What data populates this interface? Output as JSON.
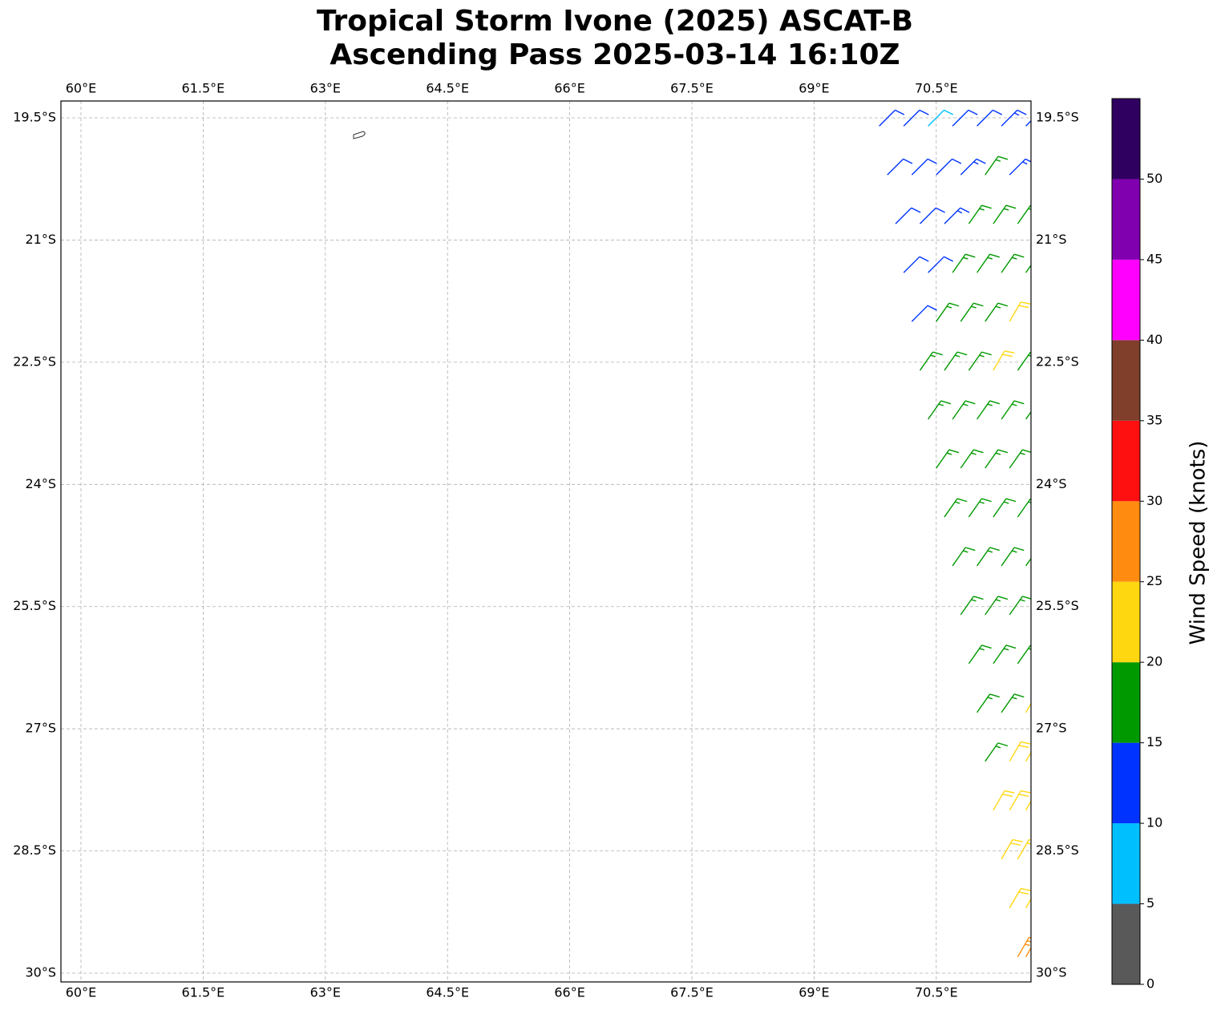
{
  "chart_data": {
    "type": "map",
    "title": [
      "Tropical Storm Ivone (2025) ASCAT-B",
      "Ascending Pass 2025-03-14 16:10Z"
    ],
    "xlim": [
      59.754,
      71.663
    ],
    "ylim": [
      -30.108,
      -19.293
    ],
    "xticks": [
      {
        "value": 60,
        "label": "60°E"
      },
      {
        "value": 61.5,
        "label": "61.5°E"
      },
      {
        "value": 63,
        "label": "63°E"
      },
      {
        "value": 64.5,
        "label": "64.5°E"
      },
      {
        "value": 66,
        "label": "66°E"
      },
      {
        "value": 67.5,
        "label": "67.5°E"
      },
      {
        "value": 69,
        "label": "69°E"
      },
      {
        "value": 70.5,
        "label": "70.5°E"
      }
    ],
    "yticks": [
      {
        "value": -19.5,
        "label": "19.5°S"
      },
      {
        "value": -21,
        "label": "21°S"
      },
      {
        "value": -22.5,
        "label": "22.5°S"
      },
      {
        "value": -24,
        "label": "24°S"
      },
      {
        "value": -25.5,
        "label": "25.5°S"
      },
      {
        "value": -27,
        "label": "27°S"
      },
      {
        "value": -28.5,
        "label": "28.5°S"
      },
      {
        "value": -30,
        "label": "30°S"
      }
    ],
    "grid": true,
    "colorbar": {
      "label": "Wind Speed (knots)",
      "bounds": [
        0,
        5,
        10,
        15,
        20,
        25,
        30,
        35,
        40,
        45,
        50,
        55
      ],
      "ticks": [
        0,
        5,
        10,
        15,
        20,
        25,
        30,
        35,
        40,
        45,
        50
      ],
      "colors": [
        "#595959",
        "#00bfff",
        "#0033ff",
        "#009900",
        "#ffd710",
        "#ff8c10",
        "#ff1010",
        "#7f3f2a",
        "#ff00ff",
        "#8000b0",
        "#300060"
      ]
    },
    "barbs": {
      "lon": [
        69.8,
        70.1,
        70.4,
        70.7,
        71.0,
        71.3,
        71.6,
        69.9,
        70.2,
        70.5,
        70.8,
        71.1,
        71.4,
        70.0,
        70.3,
        70.6,
        70.9,
        71.2,
        71.5,
        70.1,
        70.4,
        70.7,
        71.0,
        71.3,
        71.6,
        70.2,
        70.5,
        70.8,
        71.1,
        71.4,
        70.3,
        70.6,
        70.9,
        71.2,
        71.5,
        70.4,
        70.7,
        71.0,
        71.3,
        71.6,
        70.5,
        70.8,
        71.1,
        71.4,
        70.6,
        70.9,
        71.2,
        71.5,
        70.7,
        71.0,
        71.3,
        71.6,
        70.8,
        71.1,
        71.4,
        70.9,
        71.2,
        71.5,
        71.0,
        71.3,
        71.6,
        71.1,
        71.4,
        71.6,
        71.2,
        71.4,
        71.6,
        71.3,
        71.5,
        71.4,
        71.6,
        71.5,
        71.6
      ],
      "lat": [
        -19.6,
        -19.6,
        -19.6,
        -19.6,
        -19.6,
        -19.6,
        -19.6,
        -20.2,
        -20.2,
        -20.2,
        -20.2,
        -20.2,
        -20.2,
        -20.8,
        -20.8,
        -20.8,
        -20.8,
        -20.8,
        -20.8,
        -21.4,
        -21.4,
        -21.4,
        -21.4,
        -21.4,
        -21.4,
        -22.0,
        -22.0,
        -22.0,
        -22.0,
        -22.0,
        -22.6,
        -22.6,
        -22.6,
        -22.6,
        -22.6,
        -23.2,
        -23.2,
        -23.2,
        -23.2,
        -23.2,
        -23.8,
        -23.8,
        -23.8,
        -23.8,
        -24.4,
        -24.4,
        -24.4,
        -24.4,
        -25.0,
        -25.0,
        -25.0,
        -25.0,
        -25.6,
        -25.6,
        -25.6,
        -26.2,
        -26.2,
        -26.2,
        -26.8,
        -26.8,
        -26.8,
        -27.4,
        -27.4,
        -27.4,
        -28.0,
        -28.0,
        -28.0,
        -28.6,
        -28.6,
        -29.2,
        -29.2,
        -29.8,
        -29.8
      ],
      "speed": [
        12,
        12,
        8,
        12,
        12,
        13,
        13,
        12,
        12,
        12,
        13,
        17,
        13,
        12,
        12,
        13,
        17,
        17,
        16,
        12,
        12,
        17,
        17,
        17,
        18,
        12,
        17,
        17,
        17,
        21,
        17,
        17,
        17,
        21,
        17,
        17,
        17,
        17,
        17,
        17,
        17,
        17,
        17,
        17,
        17,
        17,
        17,
        17,
        17,
        17,
        17,
        17,
        17,
        17,
        17,
        17,
        17,
        17,
        17,
        17,
        21,
        17,
        21,
        21,
        21,
        21,
        21,
        21,
        21,
        21,
        21,
        26,
        26
      ],
      "direction": [
        45,
        45,
        45,
        45,
        45,
        45,
        45,
        45,
        45,
        45,
        45,
        35,
        45,
        45,
        45,
        45,
        35,
        35,
        35,
        45,
        45,
        35,
        35,
        35,
        35,
        45,
        35,
        35,
        35,
        30,
        35,
        35,
        35,
        30,
        35,
        35,
        35,
        35,
        35,
        35,
        35,
        35,
        35,
        35,
        35,
        35,
        35,
        35,
        35,
        35,
        35,
        35,
        35,
        35,
        35,
        35,
        35,
        35,
        35,
        35,
        30,
        35,
        30,
        30,
        30,
        30,
        30,
        30,
        30,
        30,
        30,
        30,
        30
      ]
    }
  }
}
